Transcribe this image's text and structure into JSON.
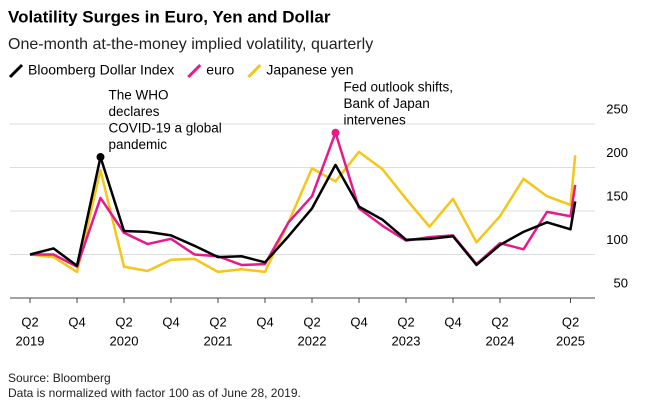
{
  "chart_data": {
    "type": "line",
    "title": "Volatility Surges in Euro, Yen and Dollar",
    "subtitle": "One-month at-the-money implied volatility, quarterly",
    "x": [
      0,
      1,
      2,
      3,
      4,
      5,
      6,
      7,
      8,
      9,
      10,
      11,
      12,
      13,
      14,
      15,
      16,
      17,
      18,
      19,
      20,
      21,
      22,
      23,
      23.2
    ],
    "series": [
      {
        "name": "Bloomberg Dollar Index",
        "color": "#000000",
        "values": [
          100,
          107,
          87,
          212,
          127,
          126,
          122,
          110,
          97,
          98,
          91,
          121,
          153,
          203,
          155,
          140,
          117,
          118,
          121,
          88,
          111,
          126,
          137,
          129,
          161
        ]
      },
      {
        "name": "euro",
        "color": "#e8198b",
        "values": [
          100,
          100,
          86,
          165,
          125,
          112,
          118,
          100,
          98,
          88,
          89,
          137,
          167,
          240,
          153,
          133,
          116,
          120,
          122,
          89,
          113,
          106,
          149,
          144,
          180
        ]
      },
      {
        "name": "Japanese yen",
        "color": "#f5c518",
        "values": [
          100,
          97,
          80,
          197,
          86,
          81,
          94,
          95,
          80,
          83,
          80,
          137,
          199,
          184,
          218,
          198,
          164,
          132,
          164,
          114,
          144,
          187,
          167,
          157,
          214
        ]
      }
    ],
    "xlim": [
      0,
      23
    ],
    "ylim": [
      50,
      250
    ],
    "yticks": [
      50,
      100,
      150,
      200,
      250
    ],
    "xticks": [
      {
        "value": 0,
        "label": "Q2"
      },
      {
        "value": 2,
        "label": "Q4"
      },
      {
        "value": 4,
        "label": "Q2"
      },
      {
        "value": 6,
        "label": "Q4"
      },
      {
        "value": 8,
        "label": "Q2"
      },
      {
        "value": 10,
        "label": "Q4"
      },
      {
        "value": 12,
        "label": "Q2"
      },
      {
        "value": 14,
        "label": "Q4"
      },
      {
        "value": 16,
        "label": "Q2"
      },
      {
        "value": 18,
        "label": "Q4"
      },
      {
        "value": 20,
        "label": "Q2"
      },
      {
        "value": 23,
        "label": "Q2"
      }
    ],
    "year_ticks": [
      {
        "value": 0,
        "label": "2019"
      },
      {
        "value": 4,
        "label": "2020"
      },
      {
        "value": 8,
        "label": "2021"
      },
      {
        "value": 12,
        "label": "2022"
      },
      {
        "value": 16,
        "label": "2023"
      },
      {
        "value": 20,
        "label": "2024"
      },
      {
        "value": 23,
        "label": "2025"
      }
    ],
    "grid": true,
    "annotations": [
      {
        "lines": [
          "The WHO",
          "declares",
          "COVID-19 a global",
          "pandemic"
        ],
        "series": 0,
        "x": 3
      },
      {
        "lines": [
          "Fed outlook shifts,",
          "Bank of Japan",
          "intervenes"
        ],
        "series": 1,
        "x": 13
      }
    ],
    "source": "Source: Bloomberg",
    "note": "Data is normalized with factor 100 as of June 28, 2019."
  }
}
